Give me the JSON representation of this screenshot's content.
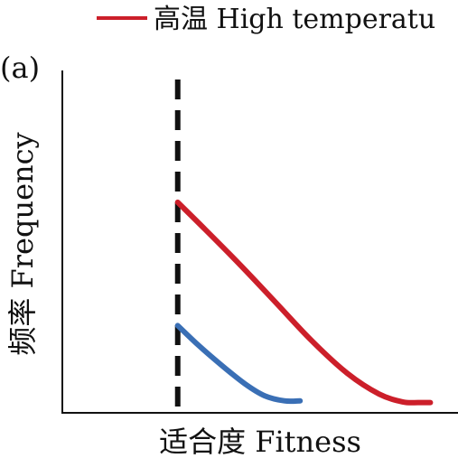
{
  "chart_data": {
    "type": "line",
    "panel_label": "(a)",
    "title": "",
    "xlabel": "适合度 Fitness",
    "ylabel": "频率 Frequency",
    "xlim": [
      0,
      1
    ],
    "ylim": [
      0,
      1
    ],
    "grid": false,
    "legend": {
      "placement": "top-center",
      "entries": [
        {
          "label": "高温 High temperatu",
          "color": "#cc1f2a"
        }
      ]
    },
    "threshold_line": {
      "x": 0.29,
      "style": "dashed",
      "color": "#111111"
    },
    "series": [
      {
        "name": "高温 High temperatu",
        "color": "#cc1f2a",
        "x": [
          0.29,
          0.36,
          0.45,
          0.54,
          0.63,
          0.72,
          0.8,
          0.86,
          0.9,
          0.93
        ],
        "y": [
          0.615,
          0.535,
          0.43,
          0.32,
          0.21,
          0.115,
          0.055,
          0.032,
          0.03,
          0.03
        ]
      },
      {
        "name": "",
        "color": "#3a6fb5",
        "x": [
          0.29,
          0.34,
          0.4,
          0.46,
          0.51,
          0.56,
          0.6
        ],
        "y": [
          0.255,
          0.2,
          0.14,
          0.085,
          0.05,
          0.035,
          0.035
        ]
      }
    ]
  }
}
